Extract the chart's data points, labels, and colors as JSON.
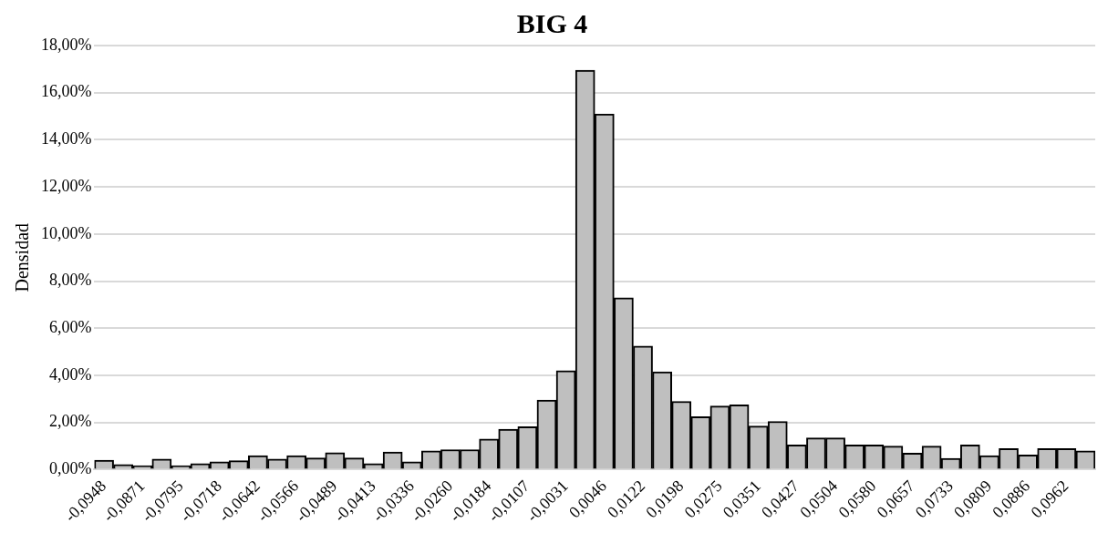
{
  "chart_data": {
    "type": "bar",
    "title": "BIG 4",
    "ylabel": "Densidad",
    "categories": [
      "-0,0948",
      null,
      "-0,0871",
      null,
      "-0,0795",
      null,
      "-0,0718",
      null,
      "-0,0642",
      null,
      "-0,0566",
      null,
      "-0,0489",
      null,
      "-0,0413",
      null,
      "-0,0336",
      null,
      "-0,0260",
      null,
      "-0,0184",
      null,
      "-0,0107",
      null,
      "-0,0031",
      null,
      "0,0046",
      null,
      "0,0122",
      null,
      "0,0198",
      null,
      "0,0275",
      null,
      "0,0351",
      null,
      "0,0427",
      null,
      "0,0504",
      null,
      "0,0580",
      null,
      "0,0657",
      null,
      "0,0733",
      null,
      "0,0809",
      null,
      "0,0886",
      null,
      "0,0962",
      null
    ],
    "values": [
      0.4,
      0.22,
      0.17,
      0.45,
      0.17,
      0.26,
      0.33,
      0.38,
      0.6,
      0.45,
      0.6,
      0.5,
      0.72,
      0.5,
      0.26,
      0.75,
      0.33,
      0.8,
      0.85,
      0.85,
      1.3,
      1.72,
      1.82,
      2.95,
      4.2,
      16.95,
      15.1,
      7.3,
      5.25,
      4.15,
      2.9,
      2.25,
      2.7,
      2.75,
      1.85,
      2.05,
      1.05,
      1.35,
      1.35,
      1.05,
      1.05,
      1.0,
      0.7,
      1.0,
      0.48,
      1.05,
      0.6,
      0.9,
      0.62,
      0.9,
      0.9,
      0.8
    ],
    "color": "#bfbfbf",
    "ylim": [
      0,
      18
    ],
    "yticks": [
      {
        "value": 0,
        "label": "0,00%"
      },
      {
        "value": 2,
        "label": "2,00%"
      },
      {
        "value": 4,
        "label": "4,00%"
      },
      {
        "value": 6,
        "label": "6,00%"
      },
      {
        "value": 8,
        "label": "8,00%"
      },
      {
        "value": 10,
        "label": "10,00%"
      },
      {
        "value": 12,
        "label": "12,00%"
      },
      {
        "value": 14,
        "label": "14,00%"
      },
      {
        "value": 16,
        "label": "16,00%"
      },
      {
        "value": 18,
        "label": "18,00%"
      }
    ],
    "grid": "y",
    "legend": false
  }
}
